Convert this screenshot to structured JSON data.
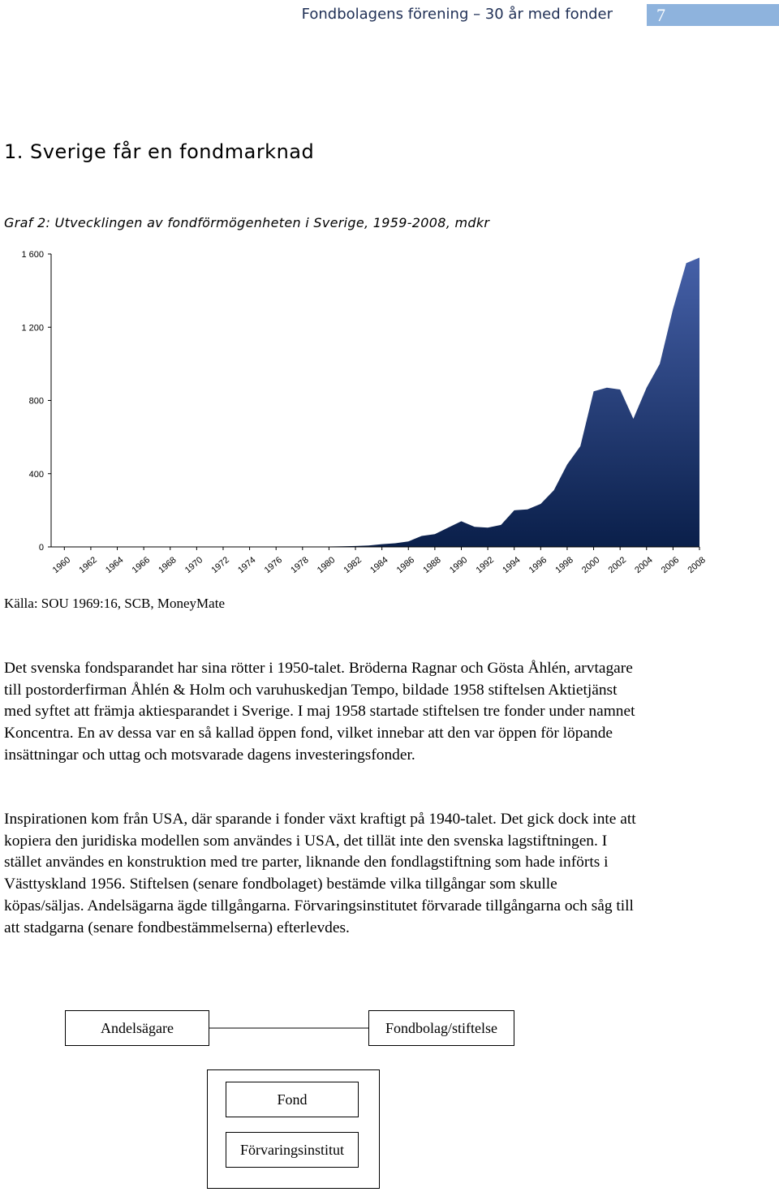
{
  "header": {
    "title": "Fondbolagens förening – 30 år med fonder",
    "page_number": "7",
    "accent_color": "#8eb3dd"
  },
  "section": {
    "heading": "1. Sverige får en fondmarknad"
  },
  "chart_caption": "Graf 2: Utvecklingen av fondförmögenheten i Sverige, 1959-2008, mdkr",
  "source": "Källa: SOU 1969:16, SCB, MoneyMate",
  "chart_data": {
    "type": "area",
    "title": "",
    "xlabel": "",
    "ylabel": "",
    "x_ticks": [
      "1960",
      "1962",
      "1964",
      "1966",
      "1968",
      "1970",
      "1972",
      "1974",
      "1976",
      "1978",
      "1980",
      "1982",
      "1984",
      "1986",
      "1988",
      "1990",
      "1992",
      "1994",
      "1996",
      "1998",
      "2000",
      "2002",
      "2004",
      "2006",
      "2008"
    ],
    "y_ticks": [
      "0",
      "400",
      "800",
      "1 200",
      "1 600"
    ],
    "ylim": [
      0,
      1600
    ],
    "xlim": [
      1959,
      2008
    ],
    "grid": false,
    "fill_color_top": "#4560a8",
    "fill_color_bottom": "#0a1f4a",
    "series": [
      {
        "x": [
          1959,
          1960,
          1961,
          1962,
          1963,
          1964,
          1965,
          1966,
          1967,
          1968,
          1969,
          1970,
          1971,
          1972,
          1973,
          1974,
          1975,
          1976,
          1977,
          1978,
          1979,
          1980,
          1981,
          1982,
          1983,
          1984,
          1985,
          1986,
          1987,
          1988,
          1989,
          1990,
          1991,
          1992,
          1993,
          1994,
          1995,
          1996,
          1997,
          1998,
          1999,
          2000,
          2001,
          2002,
          2003,
          2004,
          2005,
          2006,
          2007,
          2008
        ],
        "values": [
          0,
          0,
          0,
          0,
          0,
          0,
          0,
          0,
          0,
          0,
          0,
          0,
          0,
          0,
          0,
          0,
          0,
          0,
          0,
          0,
          1,
          2,
          3,
          5,
          8,
          15,
          20,
          30,
          60,
          70,
          105,
          140,
          110,
          105,
          120,
          200,
          205,
          235,
          310,
          450,
          550,
          850,
          870,
          860,
          700,
          870,
          1000,
          1300,
          1550,
          1580
        ]
      }
    ]
  },
  "paragraphs": [
    "Det svenska fondsparandet har sina rötter i 1950-talet. Bröderna Ragnar och Gösta Åhlén, arvtagare till postorderfirman Åhlén & Holm och varuhuskedjan Tempo, bildade 1958 stiftelsen Aktietjänst med syftet att främja aktiesparandet i Sverige. I maj 1958 startade stiftelsen tre fonder under namnet Koncentra. En av dessa var en så kallad öppen fond, vilket innebar att den var öppen för löpande insättningar och uttag och motsvarade dagens investeringsfonder.",
    "Inspirationen kom från USA, där sparande i fonder växt kraftigt på 1940-talet. Det gick dock inte att kopiera den juridiska modellen som användes i USA, det tillät inte den svenska lagstiftningen. I stället användes en konstruktion med tre parter, liknande den fondlagstiftning som hade införts i Västtyskland 1956. Stiftelsen (senare fondbolaget) bestämde vilka tillgångar som skulle köpas/säljas. Andelsägarna ägde tillgångarna. Förvaringsinstitutet förvarade tillgångarna och såg till att stadgarna (senare fondbestämmelserna) efterlevdes."
  ],
  "diagram": {
    "andelsagare": "Andelsägare",
    "fondbolag": "Fondbolag/stiftelse",
    "fond": "Fond",
    "forvaringsinstitut": "Förvaringsinstitut"
  }
}
